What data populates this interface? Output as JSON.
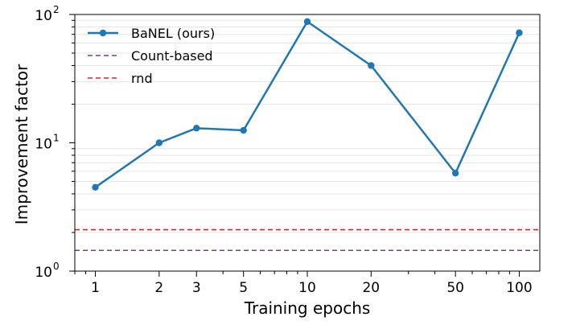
{
  "chart_data": {
    "type": "line",
    "title": "",
    "xlabel": "Training epochs",
    "ylabel": "Improvement factor",
    "xscale": "log",
    "yscale": "log",
    "xlim": [
      0.8,
      125
    ],
    "ylim": [
      1,
      100
    ],
    "x_ticks": [
      1,
      2,
      3,
      5,
      10,
      20,
      50,
      100
    ],
    "y_ticks": [
      {
        "value": 1,
        "base": "10",
        "exp": "0"
      },
      {
        "value": 10,
        "base": "10",
        "exp": "1"
      },
      {
        "value": 100,
        "base": "10",
        "exp": "2"
      }
    ],
    "grid": "horizontal minor lines",
    "legend_position": "top-left",
    "series": [
      {
        "name": "BaNEL (ours)",
        "style": "solid line with circle markers",
        "color": "#1f77b4",
        "x": [
          1,
          2,
          3,
          5,
          10,
          20,
          50,
          100
        ],
        "y": [
          4.5,
          10,
          13,
          12.5,
          88,
          40,
          5.8,
          72
        ]
      },
      {
        "name": "Count-based",
        "style": "dashed horizontal line",
        "color": "#6a3fa0",
        "y": 1.45
      },
      {
        "name": "rnd",
        "style": "dashed horizontal line",
        "color": "#d62728",
        "y": 2.1
      }
    ]
  }
}
